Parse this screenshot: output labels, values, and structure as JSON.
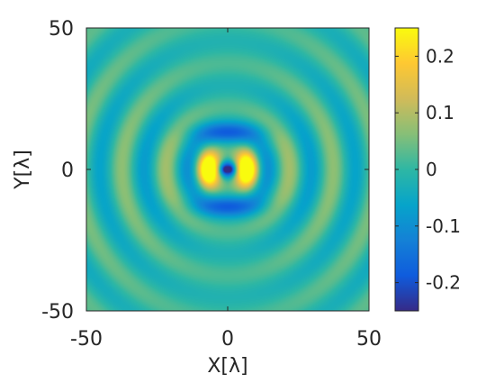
{
  "chart_data": {
    "type": "heatmap",
    "title": "",
    "xlabel": "X[λ]",
    "ylabel": "Y[λ]",
    "xlim": [
      -50,
      50
    ],
    "ylim": [
      -50,
      50
    ],
    "x_ticks": [
      "-50",
      "0",
      "50"
    ],
    "y_ticks": [
      "50",
      "0",
      "-50"
    ],
    "colormap": "parula",
    "color_range": [
      -0.25,
      0.25
    ],
    "colorbar_ticks": [
      "0.2",
      "0.1",
      "0",
      "-0.1",
      "-0.2"
    ],
    "colorbar_tick_values": [
      0.2,
      0.1,
      0,
      -0.1,
      -0.2
    ],
    "pattern": "concentric rings (radial wavelength ≈ 15λ) with a dipole-like center: two positive lobes near x = ±7, negative lobes near y = ±13 and a negative core at origin",
    "peak_positive": 0.25,
    "peak_negative": -0.23
  }
}
